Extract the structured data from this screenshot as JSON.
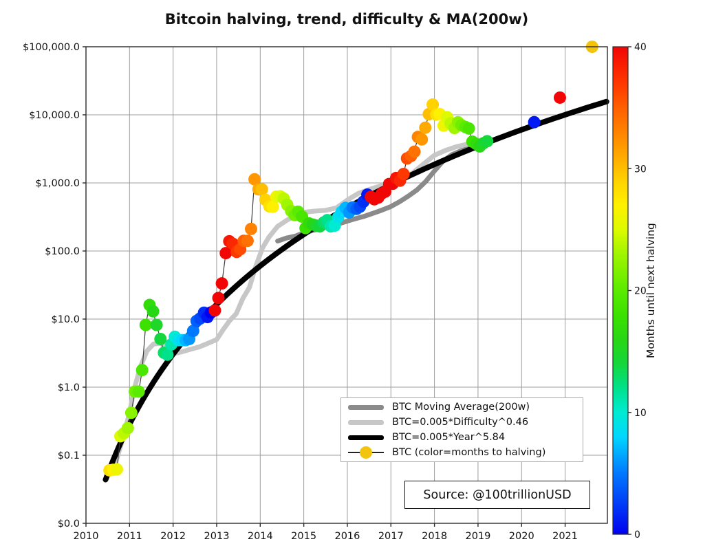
{
  "title": "Bitcoin halving, trend, difficulty & MA(200w)",
  "source_box": {
    "text": "Source: @100trillionUSD"
  },
  "legend": {
    "items": [
      {
        "label": "BTC Moving Average(200w)",
        "swatch": "thick-line",
        "color": "#8a8a8a"
      },
      {
        "label": "BTC=0.005*Difficulty^0.46",
        "swatch": "thick-line",
        "color": "#c7c7c7"
      },
      {
        "label": "BTC=0.005*Year^5.84",
        "swatch": "thick-line",
        "color": "#000000"
      },
      {
        "label": "BTC (color=months to halving)",
        "swatch": "line-marker",
        "color": "#f2c40d"
      }
    ]
  },
  "colorbar": {
    "label": "Months until next halving",
    "min": 0,
    "max": 40,
    "ticks": [
      0,
      10,
      20,
      30,
      40
    ]
  },
  "axes": {
    "x": {
      "min": 2010,
      "max": 2021.97,
      "ticks": [
        2010,
        2011,
        2012,
        2013,
        2014,
        2015,
        2016,
        2017,
        2018,
        2019,
        2020,
        2021
      ],
      "tick_labels": [
        "2010",
        "2011",
        "2012",
        "2013",
        "2014",
        "2015",
        "2016",
        "2017",
        "2018",
        "2019",
        "2020",
        "2021"
      ]
    },
    "y": {
      "scale": "log",
      "min": 0.01,
      "max": 100000,
      "tick_values": [
        100000,
        10000,
        1000,
        100,
        10,
        1,
        0.1,
        0.01
      ],
      "tick_labels": [
        "$100,000.0",
        "$10,000.0",
        "$1,000.0",
        "$100.0",
        "$10.0",
        "$1.0",
        "$0.1",
        "$0.0"
      ]
    }
  },
  "chart_data": {
    "type": "scatter",
    "title": "Bitcoin halving, trend, difficulty & MA(200w)",
    "xlabel": "",
    "ylabel": "",
    "x_range": [
      2010,
      2021.97
    ],
    "y_range_log_usd": [
      0.01,
      100000
    ],
    "grid": true,
    "legend_position": "lower right",
    "colormap": {
      "meaning": "months until next halving",
      "stops": [
        [
          0,
          [
            0,
            0,
            240
          ]
        ],
        [
          5,
          [
            0,
            120,
            255
          ]
        ],
        [
          8,
          [
            0,
            215,
            255
          ]
        ],
        [
          10,
          [
            0,
            235,
            210
          ]
        ],
        [
          12,
          [
            0,
            225,
            140
          ]
        ],
        [
          14,
          [
            20,
            215,
            60
          ]
        ],
        [
          16,
          [
            40,
            215,
            20
          ]
        ],
        [
          18,
          [
            60,
            225,
            0
          ]
        ],
        [
          20,
          [
            90,
            235,
            0
          ]
        ],
        [
          23,
          [
            160,
            245,
            0
          ]
        ],
        [
          25,
          [
            220,
            250,
            0
          ]
        ],
        [
          27,
          [
            255,
            240,
            0
          ]
        ],
        [
          29,
          [
            255,
            210,
            0
          ]
        ],
        [
          31,
          [
            255,
            170,
            0
          ]
        ],
        [
          33,
          [
            255,
            130,
            0
          ]
        ],
        [
          35,
          [
            255,
            95,
            0
          ]
        ],
        [
          37,
          [
            255,
            55,
            0
          ]
        ],
        [
          40,
          [
            242,
            5,
            5
          ]
        ]
      ]
    },
    "series": [
      {
        "name": "BTC Moving Average(200w)",
        "type": "line",
        "color": "#8a8a8a",
        "width": 7,
        "points": [
          [
            2014.4,
            140
          ],
          [
            2014.6,
            155
          ],
          [
            2014.8,
            165
          ],
          [
            2015.0,
            185
          ],
          [
            2015.2,
            200
          ],
          [
            2015.4,
            215
          ],
          [
            2015.6,
            230
          ],
          [
            2015.8,
            250
          ],
          [
            2016.0,
            275
          ],
          [
            2016.2,
            300
          ],
          [
            2016.4,
            325
          ],
          [
            2016.6,
            360
          ],
          [
            2016.8,
            400
          ],
          [
            2017.0,
            450
          ],
          [
            2017.2,
            530
          ],
          [
            2017.4,
            640
          ],
          [
            2017.6,
            790
          ],
          [
            2017.8,
            1050
          ],
          [
            2018.0,
            1500
          ],
          [
            2018.2,
            2100
          ],
          [
            2018.4,
            2600
          ],
          [
            2018.6,
            2950
          ],
          [
            2018.8,
            3250
          ],
          [
            2019.0,
            3600
          ],
          [
            2019.15,
            3900
          ]
        ]
      },
      {
        "name": "BTC=0.005*Difficulty^0.46",
        "type": "line",
        "color": "#c7c7c7",
        "width": 7,
        "points": [
          [
            2010.55,
            0.055
          ],
          [
            2010.7,
            0.085
          ],
          [
            2010.85,
            0.18
          ],
          [
            2011.0,
            0.42
          ],
          [
            2011.1,
            0.9
          ],
          [
            2011.25,
            2.0
          ],
          [
            2011.4,
            3.4
          ],
          [
            2011.55,
            4.3
          ],
          [
            2011.7,
            4.4
          ],
          [
            2011.85,
            4.0
          ],
          [
            2012.0,
            3.1
          ],
          [
            2012.2,
            3.3
          ],
          [
            2012.4,
            3.6
          ],
          [
            2012.6,
            3.9
          ],
          [
            2012.8,
            4.4
          ],
          [
            2013.0,
            5.0
          ],
          [
            2013.15,
            7.0
          ],
          [
            2013.3,
            9.5
          ],
          [
            2013.45,
            12
          ],
          [
            2013.6,
            20
          ],
          [
            2013.75,
            29
          ],
          [
            2013.9,
            60
          ],
          [
            2014.05,
            110
          ],
          [
            2014.2,
            160
          ],
          [
            2014.4,
            230
          ],
          [
            2014.6,
            280
          ],
          [
            2014.8,
            330
          ],
          [
            2015.0,
            370
          ],
          [
            2015.25,
            385
          ],
          [
            2015.5,
            395
          ],
          [
            2015.75,
            430
          ],
          [
            2016.0,
            560
          ],
          [
            2016.25,
            700
          ],
          [
            2016.5,
            800
          ],
          [
            2016.75,
            900
          ],
          [
            2017.0,
            1000
          ],
          [
            2017.25,
            1150
          ],
          [
            2017.5,
            1400
          ],
          [
            2017.75,
            1900
          ],
          [
            2018.0,
            2550
          ],
          [
            2018.25,
            3000
          ],
          [
            2018.5,
            3400
          ],
          [
            2018.75,
            3700
          ],
          [
            2018.95,
            3900
          ],
          [
            2019.15,
            4100
          ]
        ]
      },
      {
        "name": "BTC=0.005*Year^5.84",
        "type": "formula-line",
        "color": "#000000",
        "width": 8,
        "formula": "BTC = 0.005 * (year-2009)^5.84",
        "params": {
          "a": 0.005,
          "b": 5.84,
          "epoch": 2009
        },
        "range": [
          2010.45,
          2021.97
        ]
      },
      {
        "name": "BTC (color=months to halving)",
        "type": "scatter",
        "marker_radius": 9,
        "connector_color": "#3a3a3a",
        "points_format": [
          "year_decimal",
          "price_usd",
          "months_to_halving (\"gold\"=highlight point)"
        ],
        "points": [
          [
            2010.54,
            0.06,
            28
          ],
          [
            2010.62,
            0.061,
            27
          ],
          [
            2010.71,
            0.062,
            26
          ],
          [
            2010.79,
            0.19,
            25
          ],
          [
            2010.87,
            0.21,
            24
          ],
          [
            2010.96,
            0.25,
            23
          ],
          [
            2011.04,
            0.42,
            22
          ],
          [
            2011.12,
            0.86,
            21
          ],
          [
            2011.21,
            0.86,
            20
          ],
          [
            2011.29,
            1.78,
            19
          ],
          [
            2011.37,
            8.2,
            18
          ],
          [
            2011.46,
            16.1,
            17
          ],
          [
            2011.54,
            13.0,
            16
          ],
          [
            2011.62,
            8.2,
            15
          ],
          [
            2011.71,
            5.1,
            14
          ],
          [
            2011.79,
            3.2,
            13
          ],
          [
            2011.87,
            3.0,
            12
          ],
          [
            2011.96,
            4.25,
            11
          ],
          [
            2012.04,
            5.5,
            10
          ],
          [
            2012.12,
            4.9,
            9
          ],
          [
            2012.21,
            4.9,
            8
          ],
          [
            2012.29,
            4.9,
            7
          ],
          [
            2012.37,
            5.1,
            6
          ],
          [
            2012.46,
            6.7,
            5
          ],
          [
            2012.54,
            9.4,
            4
          ],
          [
            2012.62,
            10.2,
            3
          ],
          [
            2012.71,
            12.4,
            2
          ],
          [
            2012.79,
            10.7,
            1
          ],
          [
            2012.87,
            12.5,
            0
          ],
          [
            2012.96,
            13.4,
            40
          ],
          [
            2013.04,
            20.4,
            40
          ],
          [
            2013.12,
            33.4,
            40
          ],
          [
            2013.21,
            93,
            40
          ],
          [
            2013.29,
            139,
            39
          ],
          [
            2013.37,
            128,
            38
          ],
          [
            2013.46,
            97,
            37
          ],
          [
            2013.54,
            106,
            36
          ],
          [
            2013.62,
            141,
            35
          ],
          [
            2013.71,
            141,
            34
          ],
          [
            2013.79,
            211,
            33
          ],
          [
            2013.87,
            1130,
            32
          ],
          [
            2013.96,
            805,
            31
          ],
          [
            2014.04,
            806,
            30
          ],
          [
            2014.12,
            566,
            29
          ],
          [
            2014.21,
            454,
            28
          ],
          [
            2014.29,
            446,
            27
          ],
          [
            2014.37,
            628,
            26
          ],
          [
            2014.46,
            635,
            25
          ],
          [
            2014.54,
            589,
            24
          ],
          [
            2014.62,
            478,
            23
          ],
          [
            2014.71,
            387,
            22
          ],
          [
            2014.79,
            338,
            21
          ],
          [
            2014.87,
            378,
            20
          ],
          [
            2014.96,
            320,
            19
          ],
          [
            2015.04,
            217,
            18
          ],
          [
            2015.12,
            254,
            17
          ],
          [
            2015.21,
            244,
            16
          ],
          [
            2015.29,
            236,
            15
          ],
          [
            2015.37,
            230,
            14
          ],
          [
            2015.46,
            263,
            13
          ],
          [
            2015.54,
            284,
            12
          ],
          [
            2015.62,
            230,
            11
          ],
          [
            2015.71,
            236,
            10
          ],
          [
            2015.79,
            314,
            9
          ],
          [
            2015.87,
            377,
            8
          ],
          [
            2015.96,
            430,
            7
          ],
          [
            2016.04,
            369,
            6
          ],
          [
            2016.12,
            437,
            5
          ],
          [
            2016.21,
            416,
            4
          ],
          [
            2016.29,
            448,
            3
          ],
          [
            2016.37,
            531,
            2
          ],
          [
            2016.46,
            673,
            1
          ],
          [
            2016.54,
            624,
            40
          ],
          [
            2016.62,
            575,
            40
          ],
          [
            2016.71,
            610,
            40
          ],
          [
            2016.79,
            700,
            40
          ],
          [
            2016.87,
            745,
            40
          ],
          [
            2016.96,
            964,
            40
          ],
          [
            2017.04,
            970,
            40
          ],
          [
            2017.12,
            1180,
            39
          ],
          [
            2017.21,
            1080,
            38
          ],
          [
            2017.29,
            1350,
            37
          ],
          [
            2017.37,
            2290,
            36
          ],
          [
            2017.46,
            2480,
            35
          ],
          [
            2017.54,
            2875,
            34
          ],
          [
            2017.62,
            4735,
            33
          ],
          [
            2017.71,
            4360,
            32
          ],
          [
            2017.79,
            6470,
            31
          ],
          [
            2017.87,
            10230,
            30
          ],
          [
            2017.96,
            14160,
            29
          ],
          [
            2018.04,
            10100,
            28
          ],
          [
            2018.12,
            10300,
            27
          ],
          [
            2018.21,
            6940,
            26
          ],
          [
            2018.29,
            9240,
            25
          ],
          [
            2018.37,
            7500,
            24
          ],
          [
            2018.46,
            6400,
            23
          ],
          [
            2018.54,
            7780,
            22
          ],
          [
            2018.62,
            7040,
            21
          ],
          [
            2018.71,
            6630,
            20
          ],
          [
            2018.79,
            6300,
            19
          ],
          [
            2018.87,
            4040,
            18
          ],
          [
            2018.96,
            3740,
            17
          ],
          [
            2019.04,
            3440,
            16
          ],
          [
            2019.12,
            3815,
            15
          ],
          [
            2019.21,
            4100,
            14
          ],
          [
            2020.29,
            7800,
            1
          ],
          [
            2020.88,
            17900,
            40
          ],
          [
            2021.62,
            100000,
            "gold"
          ]
        ]
      }
    ]
  },
  "style_colors": {
    "grid": "#9c9c9c",
    "spine": "#2a2a2a",
    "gold_marker": "#f2c40d",
    "connector": "#3a3a3a"
  }
}
